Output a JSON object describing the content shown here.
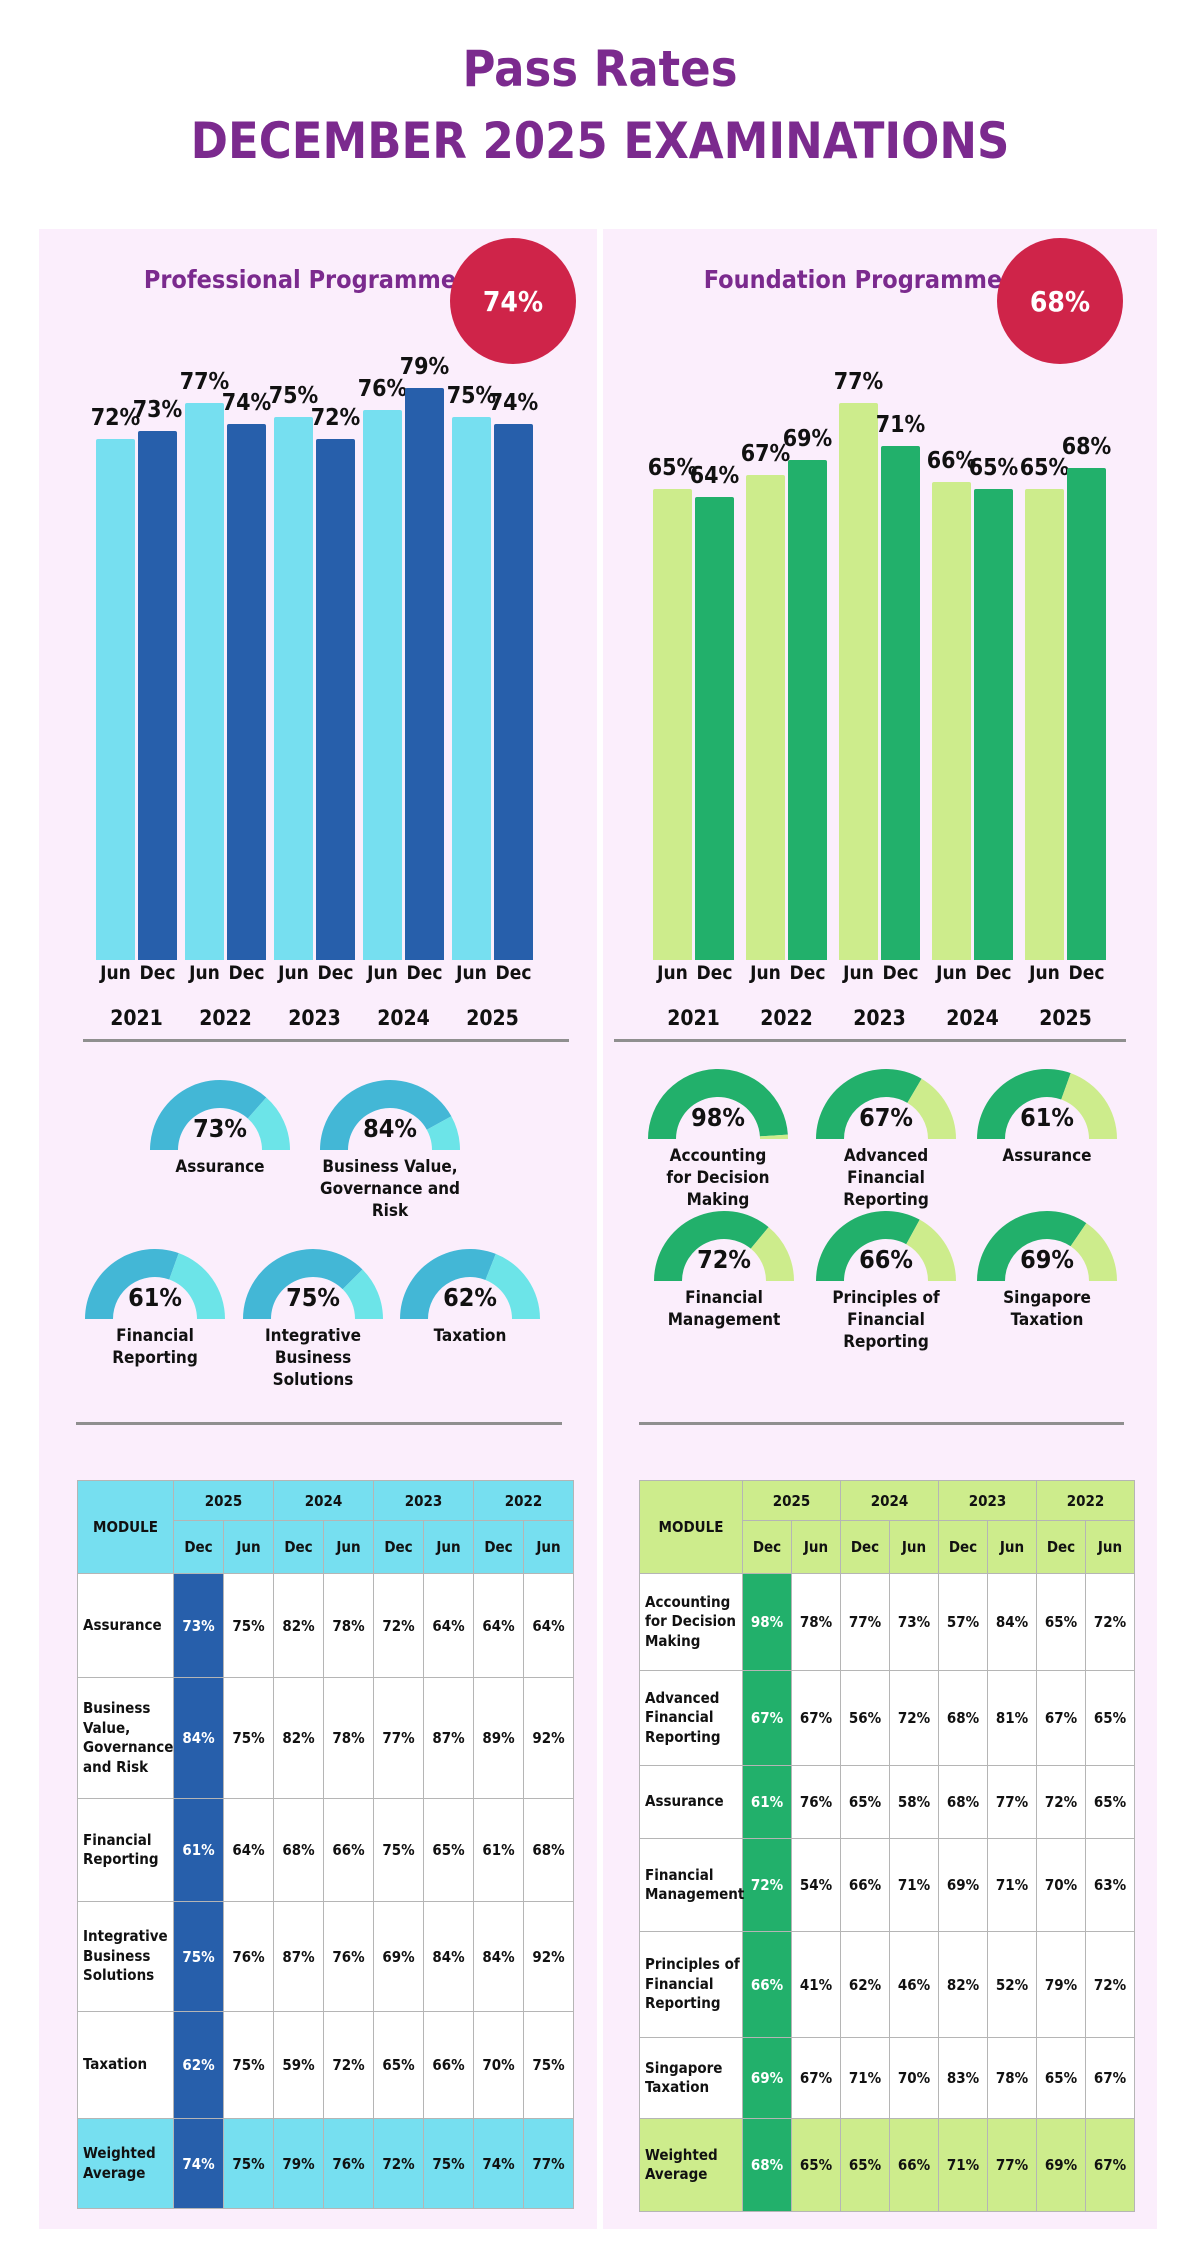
{
  "header": {
    "title": "Pass Rates",
    "subtitle": "DECEMBER 2025 EXAMINATIONS"
  },
  "colors": {
    "purple": "#7b2a8e",
    "badge": "#cf2449",
    "background": "#fbeefc"
  },
  "professional": {
    "title": "Professional Programme",
    "overall": "74%",
    "colors": {
      "jun": "#76dff0",
      "dec": "#275fab",
      "gauge_fill": "#43b7d6",
      "gauge_rest": "#6ce4e8",
      "header": "#76dff0",
      "highlight": "#275fab"
    },
    "modules": [
      {
        "name": "Assurance",
        "value": 73,
        "label": "73%"
      },
      {
        "name": "Business Value,\nGovernance and Risk",
        "value": 84,
        "label": "84%"
      },
      {
        "name": "Financial\nReporting",
        "value": 61,
        "label": "61%"
      },
      {
        "name": "Integrative\nBusiness\nSolutions",
        "value": 75,
        "label": "75%"
      },
      {
        "name": "Taxation",
        "value": 62,
        "label": "62%"
      }
    ],
    "table": {
      "module_header": "MODULE",
      "years": [
        "2025",
        "2024",
        "2023",
        "2022"
      ],
      "sessions": [
        "Dec",
        "Jun",
        "Dec",
        "Jun",
        "Dec",
        "Jun",
        "Dec",
        "Jun"
      ],
      "rows": [
        {
          "module": "Assurance",
          "values": [
            "73%",
            "75%",
            "82%",
            "78%",
            "72%",
            "64%",
            "64%",
            "64%"
          ]
        },
        {
          "module": "Business Value, Governance and Risk",
          "values": [
            "84%",
            "75%",
            "82%",
            "78%",
            "77%",
            "87%",
            "89%",
            "92%"
          ]
        },
        {
          "module": "Financial Reporting",
          "values": [
            "61%",
            "64%",
            "68%",
            "66%",
            "75%",
            "65%",
            "61%",
            "68%"
          ]
        },
        {
          "module": "Integrative Business Solutions",
          "values": [
            "75%",
            "76%",
            "87%",
            "76%",
            "69%",
            "84%",
            "84%",
            "92%"
          ]
        },
        {
          "module": "Taxation",
          "values": [
            "62%",
            "75%",
            "59%",
            "72%",
            "65%",
            "66%",
            "70%",
            "75%"
          ]
        },
        {
          "module": "Weighted Average",
          "values": [
            "74%",
            "75%",
            "79%",
            "76%",
            "72%",
            "75%",
            "74%",
            "77%"
          ]
        }
      ]
    }
  },
  "foundation": {
    "title": "Foundation Programme",
    "overall": "68%",
    "colors": {
      "jun": "#cdec8c",
      "dec": "#22b06b",
      "gauge_fill": "#22b06b",
      "gauge_rest": "#cdec8c",
      "header": "#cdec8c",
      "highlight": "#22b06b"
    },
    "modules": [
      {
        "name": "Accounting\nfor Decision\nMaking",
        "value": 98,
        "label": "98%"
      },
      {
        "name": "Advanced\nFinancial\nReporting",
        "value": 67,
        "label": "67%"
      },
      {
        "name": "Assurance",
        "value": 61,
        "label": "61%"
      },
      {
        "name": "Financial\nManagement",
        "value": 72,
        "label": "72%"
      },
      {
        "name": "Principles of\nFinancial\nReporting",
        "value": 66,
        "label": "66%"
      },
      {
        "name": "Singapore\nTaxation",
        "value": 69,
        "label": "69%"
      }
    ],
    "table": {
      "module_header": "MODULE",
      "years": [
        "2025",
        "2024",
        "2023",
        "2022"
      ],
      "sessions": [
        "Dec",
        "Jun",
        "Dec",
        "Jun",
        "Dec",
        "Jun",
        "Dec",
        "Jun"
      ],
      "rows": [
        {
          "module": "Accounting for Decision Making",
          "values": [
            "98%",
            "78%",
            "77%",
            "73%",
            "57%",
            "84%",
            "65%",
            "72%"
          ]
        },
        {
          "module": "Advanced Financial Reporting",
          "values": [
            "67%",
            "67%",
            "56%",
            "72%",
            "68%",
            "81%",
            "67%",
            "65%"
          ]
        },
        {
          "module": "Assurance",
          "values": [
            "61%",
            "76%",
            "65%",
            "58%",
            "68%",
            "77%",
            "72%",
            "65%"
          ]
        },
        {
          "module": "Financial Management",
          "values": [
            "72%",
            "54%",
            "66%",
            "71%",
            "69%",
            "71%",
            "70%",
            "63%"
          ]
        },
        {
          "module": "Principles of Financial Reporting",
          "values": [
            "66%",
            "41%",
            "62%",
            "46%",
            "82%",
            "52%",
            "79%",
            "72%"
          ]
        },
        {
          "module": "Singapore Taxation",
          "values": [
            "69%",
            "67%",
            "71%",
            "70%",
            "83%",
            "78%",
            "65%",
            "67%"
          ]
        },
        {
          "module": "Weighted Average",
          "values": [
            "68%",
            "65%",
            "65%",
            "66%",
            "71%",
            "77%",
            "69%",
            "67%"
          ]
        }
      ]
    }
  },
  "chart_data": [
    {
      "type": "bar",
      "title": "Professional Programme",
      "categories": [
        "2021",
        "2022",
        "2023",
        "2024",
        "2025"
      ],
      "sub_categories": [
        "Jun",
        "Dec"
      ],
      "series": [
        {
          "values": [
            72,
            77,
            75,
            76,
            75
          ],
          "labels": [
            "72%",
            "77%",
            "75%",
            "76%",
            "75%"
          ]
        },
        {
          "values": [
            73,
            74,
            72,
            79,
            74
          ],
          "labels": [
            "73%",
            "74%",
            "72%",
            "79%",
            "74%"
          ]
        }
      ],
      "ylim": [
        0,
        100
      ]
    },
    {
      "type": "bar",
      "title": "Foundation Programme",
      "categories": [
        "2021",
        "2022",
        "2023",
        "2024",
        "2025"
      ],
      "sub_categories": [
        "Jun",
        "Dec"
      ],
      "series": [
        {
          "values": [
            65,
            67,
            77,
            66,
            65
          ],
          "labels": [
            "65%",
            "67%",
            "77%",
            "66%",
            "65%"
          ]
        },
        {
          "values": [
            64,
            69,
            71,
            65,
            68
          ],
          "labels": [
            "64%",
            "69%",
            "71%",
            "65%",
            "68%"
          ]
        }
      ],
      "ylim": [
        0,
        100
      ]
    }
  ]
}
